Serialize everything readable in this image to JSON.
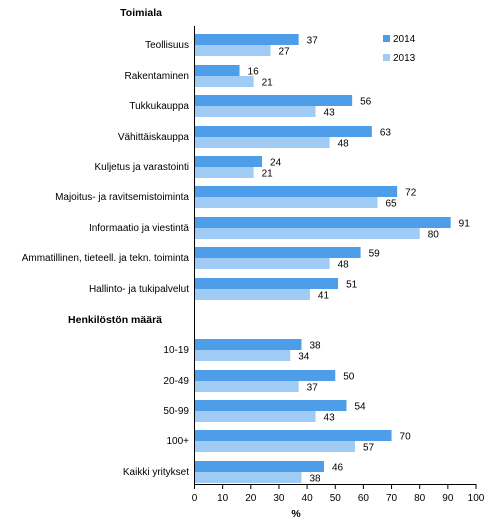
{
  "chart_data": {
    "type": "bar",
    "orientation": "horizontal",
    "xlabel": "%",
    "xlim": [
      0,
      100
    ],
    "xticks": [
      "0",
      "10",
      "20",
      "30",
      "40",
      "50",
      "60",
      "70",
      "80",
      "90",
      "100"
    ],
    "gridlines": false,
    "legend_placement": "top-right",
    "groups": [
      {
        "heading": "Toimiala",
        "categories": [
          "Teollisuus",
          "Rakentaminen",
          "Tukkukauppa",
          "Vähittäiskauppa",
          "Kuljetus ja varastointi",
          "Majoitus- ja ravitsemistoiminta",
          "Informaatio ja viestintä",
          "Ammatillinen, tieteell. ja tekn. toiminta",
          "Hallinto- ja tukipalvelut"
        ]
      },
      {
        "heading": "Henkilöstön määrä",
        "categories": [
          "10-19",
          "20-49",
          "50-99",
          "100+",
          "Kaikki yritykset"
        ]
      }
    ],
    "series": [
      {
        "name": "2014",
        "color": "#4d9de8",
        "values": [
          37,
          16,
          56,
          63,
          24,
          72,
          91,
          59,
          51,
          38,
          50,
          54,
          70,
          46
        ]
      },
      {
        "name": "2013",
        "color": "#9fcbf5",
        "values": [
          27,
          21,
          43,
          48,
          21,
          65,
          80,
          48,
          41,
          34,
          37,
          43,
          57,
          38
        ]
      }
    ]
  }
}
